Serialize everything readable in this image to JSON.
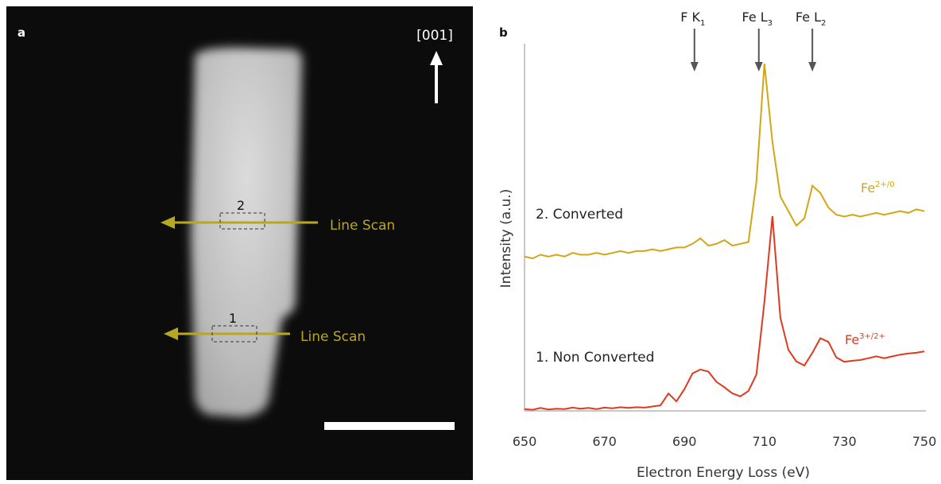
{
  "panel_a": {
    "label": "a",
    "direction": "[001]",
    "scan_2": {
      "number": "2",
      "text": "Line Scan"
    },
    "scan_1": {
      "number": "1",
      "text": "Line Scan"
    }
  },
  "chart_data": {
    "type": "line",
    "panel_label": "b",
    "xlabel": "Electron Energy Loss (eV)",
    "ylabel": "Intensity (a.u.)",
    "xlim": [
      650,
      750
    ],
    "xticks": [
      650,
      670,
      690,
      710,
      730,
      750
    ],
    "ylim": [
      0,
      100
    ],
    "annotations": [
      {
        "text": "F K",
        "sub": "1",
        "x": 692.5
      },
      {
        "text": "Fe L",
        "sub": "3",
        "x": 708.6
      },
      {
        "text": "Fe L",
        "sub": "2",
        "x": 722
      }
    ],
    "x": [
      650,
      652,
      654,
      656,
      658,
      660,
      662,
      664,
      666,
      668,
      670,
      672,
      674,
      676,
      678,
      680,
      682,
      684,
      686,
      688,
      690,
      692,
      694,
      696,
      698,
      700,
      702,
      704,
      706,
      708,
      710,
      712,
      714,
      716,
      718,
      720,
      722,
      724,
      726,
      728,
      730,
      732,
      734,
      736,
      738,
      740,
      742,
      744,
      746,
      748,
      750
    ],
    "series": [
      {
        "name": "2. Converted",
        "color": "#d4a514",
        "ion": "Fe",
        "ion_sup": "2+/0",
        "values": [
          42.5,
          42,
          43,
          42.5,
          43,
          42.5,
          43.5,
          43,
          43,
          43.5,
          43,
          43.5,
          44,
          43.5,
          44,
          44,
          44.5,
          44,
          44.5,
          45,
          45,
          46,
          47.5,
          45.5,
          46,
          47,
          45.5,
          46,
          46.5,
          63,
          95.6,
          74,
          59,
          55,
          51,
          53,
          62,
          60,
          56,
          54,
          53.5,
          54,
          53.5,
          54,
          54.5,
          54,
          54.5,
          55,
          54.5,
          55.5,
          55
        ]
      },
      {
        "name": "1. Non Converted",
        "color": "#e03a1e",
        "ion": "Fe",
        "ion_sup": "3+/2+",
        "values": [
          0.5,
          0.3,
          0.8,
          0.4,
          0.6,
          0.5,
          0.9,
          0.6,
          0.8,
          0.5,
          0.9,
          0.7,
          1,
          0.8,
          1,
          0.9,
          1.2,
          1.5,
          4.8,
          2.6,
          6,
          10.3,
          11.4,
          10.8,
          8,
          6.5,
          4.8,
          4,
          5.5,
          10,
          30,
          53.6,
          25.6,
          16.8,
          13.6,
          12.5,
          16,
          20,
          19,
          14.7,
          13.5,
          13.8,
          14,
          14.5,
          15,
          14.5,
          15,
          15.5,
          15.8,
          16,
          16.4
        ]
      }
    ]
  }
}
